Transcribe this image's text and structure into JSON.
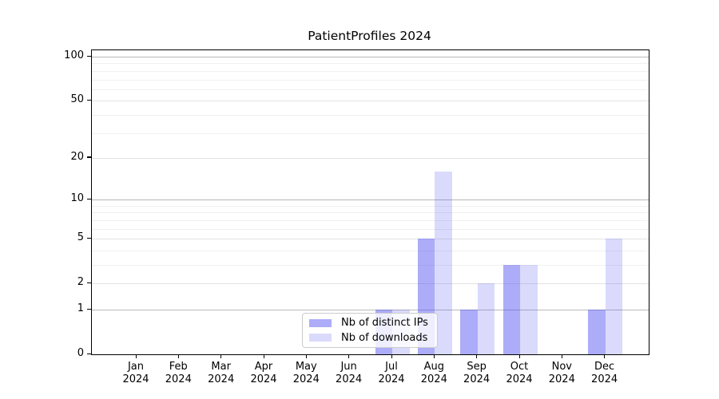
{
  "title": "PatientProfiles 2024",
  "legend": {
    "items": [
      {
        "label": "Nb of distinct IPs"
      },
      {
        "label": "Nb of downloads"
      }
    ]
  },
  "chart_data": {
    "type": "bar",
    "title": "PatientProfiles 2024",
    "categories": [
      "Jan 2024",
      "Feb 2024",
      "Mar 2024",
      "Apr 2024",
      "May 2024",
      "Jun 2024",
      "Jul 2024",
      "Aug 2024",
      "Sep 2024",
      "Oct 2024",
      "Nov 2024",
      "Dec 2024"
    ],
    "series": [
      {
        "name": "Nb of distinct IPs",
        "color": "rgba(70,70,240,0.45)",
        "values": [
          0,
          0,
          0,
          0,
          0,
          0,
          1,
          5,
          1,
          3,
          0,
          1
        ]
      },
      {
        "name": "Nb of downloads",
        "color": "rgba(70,70,240,0.20)",
        "values": [
          0,
          0,
          0,
          0,
          0,
          0,
          1,
          16,
          2,
          3,
          0,
          5
        ]
      }
    ],
    "xlabel": "",
    "ylabel": "",
    "yscale": "log1p",
    "ylim": [
      0,
      110.5
    ],
    "y_tick_values": [
      0,
      1,
      2,
      5,
      10,
      20,
      50,
      100
    ],
    "y_emphasized_gridlines": [
      1,
      10,
      100
    ],
    "y_minor_gridlines": [
      3,
      4,
      6,
      7,
      8,
      9,
      30,
      40,
      60,
      70,
      80,
      90
    ],
    "grid": true,
    "legend_position": "lower center",
    "bar_mode": "grouped-pair"
  },
  "colors": {
    "series_distinct_ips": "rgba(70,70,240,0.45)",
    "series_downloads": "rgba(70,70,240,0.20)",
    "axis": "#000000"
  }
}
